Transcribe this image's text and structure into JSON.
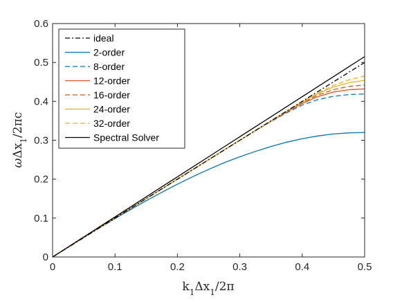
{
  "chart_data": {
    "type": "line",
    "xlabel_parts": [
      "k",
      "1",
      "Δx",
      "1",
      "/2π"
    ],
    "ylabel_parts": [
      "ω",
      "Δx",
      "1",
      "/2πc"
    ],
    "xlim": [
      0,
      0.5
    ],
    "ylim": [
      0,
      0.6
    ],
    "x_ticks": [
      0,
      0.1,
      0.2,
      0.3,
      0.4,
      0.5
    ],
    "x_tick_labels": [
      "0",
      "0.1",
      "0.2",
      "0.3",
      "0.4",
      "0.5"
    ],
    "y_ticks": [
      0,
      0.1,
      0.2,
      0.3,
      0.4,
      0.5,
      0.6
    ],
    "y_tick_labels": [
      "0",
      "0.1",
      "0.2",
      "0.3",
      "0.4",
      "0.5",
      "0.6"
    ],
    "grid": false,
    "legend_position": "top-left",
    "x": [
      0,
      0.025,
      0.05,
      0.075,
      0.1,
      0.125,
      0.15,
      0.175,
      0.2,
      0.225,
      0.25,
      0.275,
      0.3,
      0.325,
      0.35,
      0.375,
      0.4,
      0.425,
      0.45,
      0.475,
      0.5
    ],
    "series": [
      {
        "name": "ideal",
        "color": "#000000",
        "dash": "dashdot",
        "values": [
          0,
          0.025,
          0.05,
          0.075,
          0.1,
          0.125,
          0.15,
          0.175,
          0.2,
          0.225,
          0.25,
          0.275,
          0.3,
          0.325,
          0.35,
          0.375,
          0.4,
          0.425,
          0.45,
          0.475,
          0.5
        ]
      },
      {
        "name": "2-order",
        "color": "#0072BD",
        "dash": "solid",
        "values": [
          0,
          0.025,
          0.0499,
          0.0745,
          0.0984,
          0.1218,
          0.1445,
          0.1661,
          0.1871,
          0.2066,
          0.2251,
          0.2424,
          0.2575,
          0.2714,
          0.284,
          0.295,
          0.304,
          0.311,
          0.3163,
          0.319,
          0.32
        ]
      },
      {
        "name": "8-order",
        "color": "#0072BD",
        "dash": "dashed",
        "values": [
          0,
          0.025,
          0.05,
          0.075,
          0.1,
          0.125,
          0.15,
          0.175,
          0.2,
          0.225,
          0.25,
          0.275,
          0.2999,
          0.3245,
          0.3482,
          0.3705,
          0.3905,
          0.4045,
          0.413,
          0.4175,
          0.419
        ]
      },
      {
        "name": "12-order",
        "color": "#D95319",
        "dash": "solid",
        "values": [
          0,
          0.025,
          0.05,
          0.075,
          0.1,
          0.125,
          0.15,
          0.175,
          0.2,
          0.225,
          0.25,
          0.275,
          0.3,
          0.3248,
          0.349,
          0.3725,
          0.3945,
          0.412,
          0.424,
          0.43,
          0.432
        ]
      },
      {
        "name": "16-order",
        "color": "#D95319",
        "dash": "dashed",
        "values": [
          0,
          0.025,
          0.05,
          0.075,
          0.1,
          0.125,
          0.15,
          0.175,
          0.2,
          0.225,
          0.25,
          0.275,
          0.3,
          0.3249,
          0.3494,
          0.3735,
          0.3962,
          0.416,
          0.43,
          0.4385,
          0.442
        ]
      },
      {
        "name": "24-order",
        "color": "#EDB120",
        "dash": "solid",
        "values": [
          0,
          0.025,
          0.05,
          0.075,
          0.1,
          0.125,
          0.15,
          0.175,
          0.2,
          0.225,
          0.25,
          0.275,
          0.3,
          0.325,
          0.3496,
          0.3742,
          0.3978,
          0.4195,
          0.437,
          0.448,
          0.454
        ]
      },
      {
        "name": "32-order",
        "color": "#EDB120",
        "dash": "dashed",
        "values": [
          0,
          0.025,
          0.05,
          0.075,
          0.1,
          0.125,
          0.15,
          0.175,
          0.2,
          0.225,
          0.25,
          0.275,
          0.3,
          0.325,
          0.3498,
          0.3745,
          0.3985,
          0.4215,
          0.441,
          0.4555,
          0.465
        ]
      },
      {
        "name": "Spectral Solver",
        "color": "#000000",
        "dash": "solid",
        "values": [
          0,
          0.0258,
          0.0515,
          0.0773,
          0.103,
          0.1288,
          0.1545,
          0.1803,
          0.206,
          0.2318,
          0.2575,
          0.2833,
          0.309,
          0.3348,
          0.3605,
          0.3863,
          0.412,
          0.4378,
          0.4635,
          0.4893,
          0.515
        ]
      }
    ]
  }
}
